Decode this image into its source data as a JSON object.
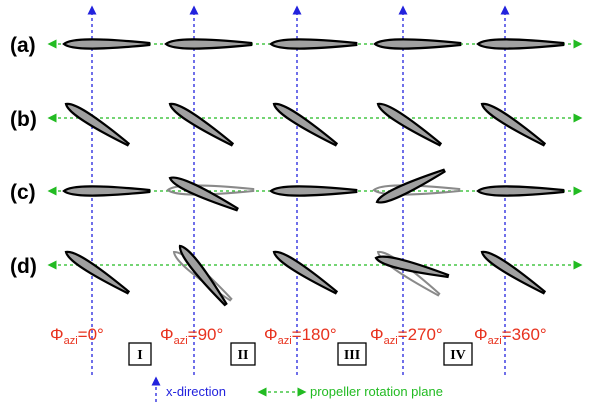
{
  "rows": [
    {
      "label": "(a)"
    },
    {
      "label": "(b)"
    },
    {
      "label": "(c)"
    },
    {
      "label": "(d)"
    }
  ],
  "phi_symbol": "Φ",
  "phi_subscript": "azi",
  "azimuths": [
    "=0°",
    "=90°",
    "=180°",
    "=270°",
    "=360°"
  ],
  "quadrants": [
    "I",
    "II",
    "III",
    "IV"
  ],
  "legend": {
    "x_direction": "x-direction",
    "rotation_plane": "propeller rotation plane"
  },
  "colors": {
    "x_axis": "#2222dd",
    "rotation_plane": "#22bb22",
    "azimuth_text": "#e8321e",
    "airfoil_fill": "#a0a0a0",
    "airfoil_outline": "#000000",
    "ghost_outline": "#8a8a8a"
  }
}
